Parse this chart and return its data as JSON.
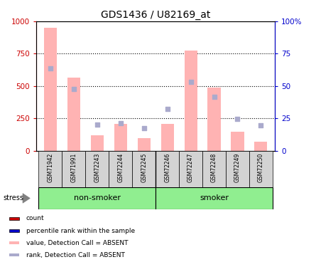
{
  "title": "GDS1436 / U82169_at",
  "samples": [
    "GSM71942",
    "GSM71991",
    "GSM72243",
    "GSM72244",
    "GSM72245",
    "GSM72246",
    "GSM72247",
    "GSM72248",
    "GSM72249",
    "GSM72250"
  ],
  "pink_bars": [
    950,
    565,
    120,
    210,
    100,
    210,
    775,
    490,
    150,
    70
  ],
  "blue_squares": [
    635,
    480,
    205,
    215,
    175,
    325,
    535,
    415,
    248,
    200
  ],
  "left_ylim": [
    0,
    1000
  ],
  "right_ylim": [
    0,
    100
  ],
  "left_yticks": [
    0,
    250,
    500,
    750,
    1000
  ],
  "right_yticks": [
    0,
    25,
    50,
    75,
    100
  ],
  "right_yticklabels": [
    "0",
    "25",
    "50",
    "75",
    "100%"
  ],
  "non_smoker_label": "non-smoker",
  "smoker_label": "smoker",
  "stress_label": "stress",
  "bar_color": "#FFB3B3",
  "square_color": "#AAAACC",
  "group_bg_color": "#90EE90",
  "tick_label_bg": "#D3D3D3",
  "left_axis_color": "#CC0000",
  "right_axis_color": "#0000CC",
  "legend_items": [
    {
      "label": "count",
      "color": "#CC0000"
    },
    {
      "label": "percentile rank within the sample",
      "color": "#0000CC"
    },
    {
      "label": "value, Detection Call = ABSENT",
      "color": "#FFB3B3"
    },
    {
      "label": "rank, Detection Call = ABSENT",
      "color": "#AAAACC"
    }
  ],
  "figsize": [
    4.45,
    3.75
  ],
  "dpi": 100
}
